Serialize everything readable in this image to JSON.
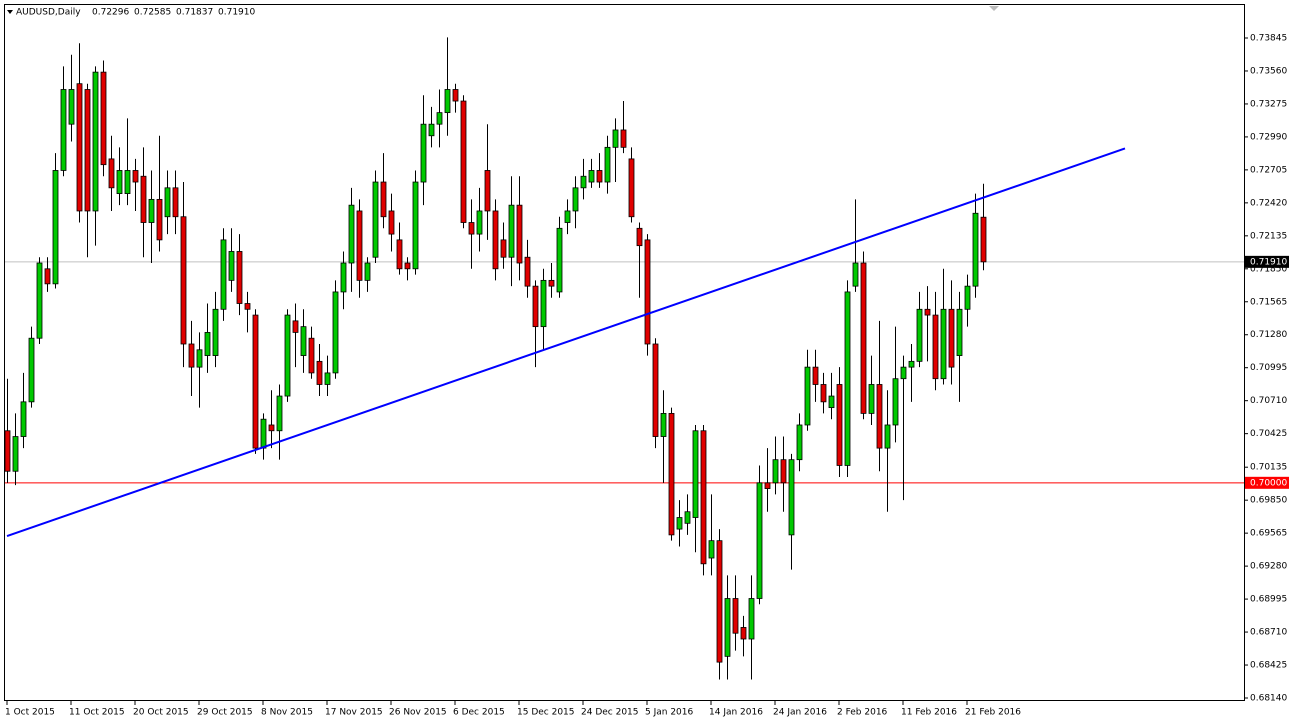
{
  "chart_data": {
    "type": "candlestick",
    "header": {
      "symbol": "AUDUSD,Daily",
      "values": [
        "0.72296",
        "0.72585",
        "0.71837",
        "0.71910"
      ]
    },
    "ylim": [
      0.6814,
      0.73845
    ],
    "yticks": [
      {
        "value": 0.73845,
        "label": "0.73845"
      },
      {
        "value": 0.7356,
        "label": "0.73560"
      },
      {
        "value": 0.73275,
        "label": "0.73275"
      },
      {
        "value": 0.7299,
        "label": "0.72990"
      },
      {
        "value": 0.72705,
        "label": "0.72705"
      },
      {
        "value": 0.7242,
        "label": "0.72420"
      },
      {
        "value": 0.72135,
        "label": "0.72135"
      },
      {
        "value": 0.7185,
        "label": "0.71850"
      },
      {
        "value": 0.71565,
        "label": "0.71565"
      },
      {
        "value": 0.7128,
        "label": "0.71280"
      },
      {
        "value": 0.70995,
        "label": "0.70995"
      },
      {
        "value": 0.7071,
        "label": "0.70710"
      },
      {
        "value": 0.70425,
        "label": "0.70425"
      },
      {
        "value": 0.70135,
        "label": "0.70135"
      },
      {
        "value": 0.6985,
        "label": "0.69850"
      },
      {
        "value": 0.69565,
        "label": "0.69565"
      },
      {
        "value": 0.6928,
        "label": "0.69280"
      },
      {
        "value": 0.68995,
        "label": "0.68995"
      },
      {
        "value": 0.6871,
        "label": "0.68710"
      },
      {
        "value": 0.68425,
        "label": "0.68425"
      },
      {
        "value": 0.6814,
        "label": "0.68140"
      }
    ],
    "current_price": {
      "value": 0.7191,
      "label": "0.71910"
    },
    "hline": {
      "value": 0.7,
      "label": "0.70000",
      "color": "#ff0000"
    },
    "trendline": {
      "from": [
        0,
        0.6954
      ],
      "to": [
        139.75,
        0.7289
      ],
      "color": "#0000ff"
    },
    "up_color": "#00c800",
    "down_color": "#e00000",
    "categories": [
      "1 Oct 2015",
      null,
      null,
      null,
      null,
      null,
      null,
      null,
      "11 Oct 2015",
      null,
      null,
      null,
      null,
      null,
      null,
      null,
      "20 Oct 2015",
      null,
      null,
      null,
      null,
      null,
      null,
      null,
      "29 Oct 2015",
      null,
      null,
      null,
      null,
      null,
      null,
      null,
      "8 Nov 2015",
      null,
      null,
      null,
      null,
      null,
      null,
      null,
      "17 Nov 2015",
      null,
      null,
      null,
      null,
      null,
      null,
      null,
      "26 Nov 2015",
      null,
      null,
      null,
      null,
      null,
      null,
      null,
      "6 Dec 2015",
      null,
      null,
      null,
      null,
      null,
      null,
      null,
      "15 Dec 2015",
      null,
      null,
      null,
      null,
      null,
      null,
      null,
      "24 Dec 2015",
      null,
      null,
      null,
      null,
      null,
      null,
      null,
      "5 Jan 2016",
      null,
      null,
      null,
      null,
      null,
      null,
      null,
      "14 Jan 2016",
      null,
      null,
      null,
      null,
      null,
      null,
      null,
      "24 Jan 2016",
      null,
      null,
      null,
      null,
      null,
      null,
      null,
      "2 Feb 2016",
      null,
      null,
      null,
      null,
      null,
      null,
      null,
      "11 Feb 2016",
      null,
      null,
      null,
      null,
      null,
      null,
      null,
      "21 Feb 2016",
      null,
      null
    ],
    "ohlc": [
      [
        0.7045,
        0.709,
        0.7,
        0.701
      ],
      [
        0.701,
        0.706,
        0.6998,
        0.704
      ],
      [
        0.704,
        0.7095,
        0.703,
        0.707
      ],
      [
        0.707,
        0.7135,
        0.7065,
        0.7125
      ],
      [
        0.7125,
        0.7195,
        0.712,
        0.719
      ],
      [
        0.7185,
        0.7195,
        0.7165,
        0.7172
      ],
      [
        0.7172,
        0.7285,
        0.7168,
        0.727
      ],
      [
        0.727,
        0.736,
        0.7265,
        0.734
      ],
      [
        0.731,
        0.737,
        0.7295,
        0.734
      ],
      [
        0.7345,
        0.738,
        0.7225,
        0.7235
      ],
      [
        0.734,
        0.7345,
        0.7195,
        0.7235
      ],
      [
        0.7235,
        0.736,
        0.7205,
        0.7355
      ],
      [
        0.7355,
        0.7365,
        0.7265,
        0.7275
      ],
      [
        0.728,
        0.73,
        0.7235,
        0.7255
      ],
      [
        0.725,
        0.729,
        0.724,
        0.727
      ],
      [
        0.725,
        0.7315,
        0.724,
        0.727
      ],
      [
        0.727,
        0.728,
        0.7235,
        0.726
      ],
      [
        0.7265,
        0.729,
        0.7195,
        0.7225
      ],
      [
        0.7225,
        0.727,
        0.719,
        0.7245
      ],
      [
        0.7245,
        0.73,
        0.72,
        0.721
      ],
      [
        0.723,
        0.727,
        0.7215,
        0.7255
      ],
      [
        0.7255,
        0.727,
        0.7215,
        0.723
      ],
      [
        0.723,
        0.726,
        0.71,
        0.712
      ],
      [
        0.712,
        0.714,
        0.7075,
        0.71
      ],
      [
        0.71,
        0.713,
        0.7065,
        0.7115
      ],
      [
        0.711,
        0.7155,
        0.7095,
        0.713
      ],
      [
        0.711,
        0.7165,
        0.71,
        0.715
      ],
      [
        0.715,
        0.722,
        0.714,
        0.721
      ],
      [
        0.7175,
        0.722,
        0.7165,
        0.72
      ],
      [
        0.72,
        0.7215,
        0.7145,
        0.7155
      ],
      [
        0.7155,
        0.7165,
        0.713,
        0.715
      ],
      [
        0.7145,
        0.715,
        0.7025,
        0.703
      ],
      [
        0.703,
        0.706,
        0.702,
        0.7055
      ],
      [
        0.705,
        0.708,
        0.703,
        0.7045
      ],
      [
        0.7045,
        0.7085,
        0.702,
        0.7075
      ],
      [
        0.7075,
        0.715,
        0.707,
        0.7145
      ],
      [
        0.714,
        0.7155,
        0.71,
        0.713
      ],
      [
        0.711,
        0.715,
        0.7095,
        0.7135
      ],
      [
        0.7125,
        0.7135,
        0.709,
        0.7095
      ],
      [
        0.7105,
        0.712,
        0.7075,
        0.7085
      ],
      [
        0.7085,
        0.711,
        0.7075,
        0.7095
      ],
      [
        0.7095,
        0.7175,
        0.709,
        0.7165
      ],
      [
        0.7165,
        0.72,
        0.715,
        0.719
      ],
      [
        0.719,
        0.7255,
        0.7165,
        0.724
      ],
      [
        0.7235,
        0.7245,
        0.716,
        0.7175
      ],
      [
        0.7175,
        0.7195,
        0.7165,
        0.719
      ],
      [
        0.7195,
        0.727,
        0.719,
        0.726
      ],
      [
        0.726,
        0.7285,
        0.722,
        0.723
      ],
      [
        0.7235,
        0.725,
        0.72,
        0.7215
      ],
      [
        0.721,
        0.7225,
        0.718,
        0.7185
      ],
      [
        0.719,
        0.7195,
        0.7175,
        0.7185
      ],
      [
        0.7185,
        0.727,
        0.718,
        0.726
      ],
      [
        0.726,
        0.7335,
        0.724,
        0.731
      ],
      [
        0.73,
        0.7325,
        0.729,
        0.731
      ],
      [
        0.731,
        0.734,
        0.729,
        0.732
      ],
      [
        0.732,
        0.7385,
        0.73,
        0.734
      ],
      [
        0.734,
        0.7345,
        0.732,
        0.733
      ],
      [
        0.733,
        0.7335,
        0.722,
        0.7225
      ],
      [
        0.7225,
        0.7245,
        0.7185,
        0.7215
      ],
      [
        0.7215,
        0.7255,
        0.72,
        0.7235
      ],
      [
        0.727,
        0.731,
        0.721,
        0.7235
      ],
      [
        0.7235,
        0.7245,
        0.7175,
        0.7185
      ],
      [
        0.721,
        0.7225,
        0.7185,
        0.7195
      ],
      [
        0.7195,
        0.7265,
        0.717,
        0.724
      ],
      [
        0.724,
        0.7265,
        0.7175,
        0.719
      ],
      [
        0.7195,
        0.721,
        0.716,
        0.717
      ],
      [
        0.717,
        0.7175,
        0.71,
        0.7135
      ],
      [
        0.7135,
        0.7185,
        0.7115,
        0.7175
      ],
      [
        0.7175,
        0.719,
        0.716,
        0.717
      ],
      [
        0.7165,
        0.723,
        0.716,
        0.722
      ],
      [
        0.7225,
        0.7245,
        0.7215,
        0.7235
      ],
      [
        0.7235,
        0.7265,
        0.722,
        0.7255
      ],
      [
        0.7255,
        0.728,
        0.7245,
        0.7265
      ],
      [
        0.726,
        0.728,
        0.7255,
        0.727
      ],
      [
        0.727,
        0.7285,
        0.7255,
        0.726
      ],
      [
        0.726,
        0.73,
        0.725,
        0.729
      ],
      [
        0.729,
        0.7315,
        0.726,
        0.7305
      ],
      [
        0.7305,
        0.733,
        0.7285,
        0.729
      ],
      [
        0.728,
        0.729,
        0.7225,
        0.723
      ],
      [
        0.722,
        0.7225,
        0.716,
        0.7205
      ],
      [
        0.721,
        0.7215,
        0.711,
        0.712
      ],
      [
        0.712,
        0.7125,
        0.703,
        0.704
      ],
      [
        0.704,
        0.708,
        0.7,
        0.706
      ],
      [
        0.706,
        0.7065,
        0.695,
        0.6955
      ],
      [
        0.696,
        0.6985,
        0.6945,
        0.697
      ],
      [
        0.6965,
        0.699,
        0.6955,
        0.6975
      ],
      [
        0.697,
        0.705,
        0.694,
        0.7045
      ],
      [
        0.7045,
        0.705,
        0.692,
        0.693
      ],
      [
        0.6935,
        0.699,
        0.692,
        0.695
      ],
      [
        0.695,
        0.696,
        0.683,
        0.6845
      ],
      [
        0.685,
        0.692,
        0.683,
        0.69
      ],
      [
        0.69,
        0.692,
        0.6855,
        0.687
      ],
      [
        0.6875,
        0.6885,
        0.685,
        0.6865
      ],
      [
        0.6865,
        0.692,
        0.683,
        0.69
      ],
      [
        0.69,
        0.7015,
        0.6895,
        0.7
      ],
      [
        0.7,
        0.703,
        0.6975,
        0.6995
      ],
      [
        0.7,
        0.704,
        0.699,
        0.702
      ],
      [
        0.702,
        0.704,
        0.6975,
        0.7
      ],
      [
        0.6955,
        0.7025,
        0.6925,
        0.702
      ],
      [
        0.702,
        0.706,
        0.701,
        0.705
      ],
      [
        0.705,
        0.7115,
        0.7045,
        0.71
      ],
      [
        0.71,
        0.7115,
        0.707,
        0.7085
      ],
      [
        0.7085,
        0.7095,
        0.706,
        0.707
      ],
      [
        0.7065,
        0.7095,
        0.7055,
        0.7075
      ],
      [
        0.7085,
        0.71,
        0.7005,
        0.7015
      ],
      [
        0.7015,
        0.7175,
        0.7005,
        0.7165
      ],
      [
        0.717,
        0.7245,
        0.7165,
        0.719
      ],
      [
        0.719,
        0.72,
        0.7055,
        0.706
      ],
      [
        0.706,
        0.711,
        0.705,
        0.7085
      ],
      [
        0.7085,
        0.714,
        0.701,
        0.703
      ],
      [
        0.703,
        0.708,
        0.6975,
        0.705
      ],
      [
        0.705,
        0.7135,
        0.7035,
        0.709
      ],
      [
        0.709,
        0.711,
        0.6985,
        0.71
      ],
      [
        0.71,
        0.712,
        0.707,
        0.7105
      ],
      [
        0.7105,
        0.7165,
        0.71,
        0.715
      ],
      [
        0.715,
        0.717,
        0.7105,
        0.7145
      ],
      [
        0.7145,
        0.7165,
        0.708,
        0.709
      ],
      [
        0.709,
        0.7185,
        0.7085,
        0.715
      ],
      [
        0.715,
        0.7175,
        0.7085,
        0.71
      ],
      [
        0.711,
        0.7165,
        0.707,
        0.715
      ],
      [
        0.715,
        0.718,
        0.7135,
        0.717
      ],
      [
        0.717,
        0.725,
        0.716,
        0.7233
      ],
      [
        0.72296,
        0.72585,
        0.71837,
        0.7191
      ]
    ]
  }
}
